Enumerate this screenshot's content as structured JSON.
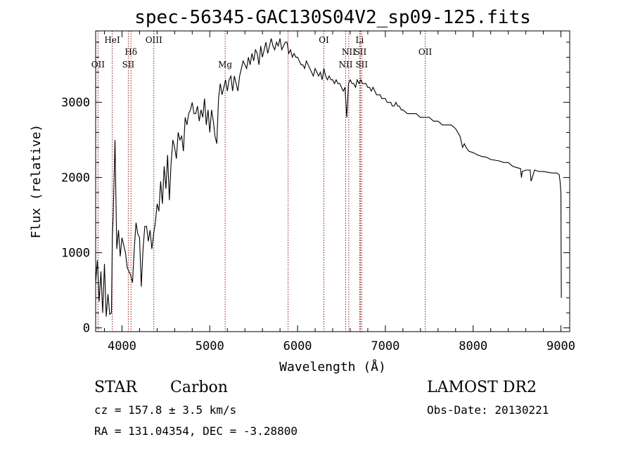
{
  "chart_data": {
    "type": "line",
    "title": "spec-56345-GAC130S04V2_sp09-125.fits",
    "xlabel": "Wavelength (Å)",
    "ylabel": "Flux (relative)",
    "xlim": [
      3700,
      9100
    ],
    "ylim": [
      -50,
      3950
    ],
    "xticks": [
      {
        "value": 4000,
        "label": "4000"
      },
      {
        "value": 5000,
        "label": "5000"
      },
      {
        "value": 6000,
        "label": "6000"
      },
      {
        "value": 7000,
        "label": "7000"
      },
      {
        "value": 8000,
        "label": "8000"
      },
      {
        "value": 9000,
        "label": "9000"
      }
    ],
    "yticks": [
      {
        "value": 0,
        "label": "0"
      },
      {
        "value": 1000,
        "label": "1000"
      },
      {
        "value": 2000,
        "label": "2000"
      },
      {
        "value": 3000,
        "label": "3000"
      }
    ],
    "grid": false,
    "series": [
      {
        "x": [
          3700,
          3720,
          3740,
          3760,
          3780,
          3800,
          3820,
          3840,
          3860,
          3880,
          3890,
          3900,
          3920,
          3940,
          3960,
          3980,
          4000,
          4020,
          4040,
          4060,
          4080,
          4100,
          4120,
          4140,
          4160,
          4180,
          4200,
          4220,
          4240,
          4260,
          4280,
          4300,
          4320,
          4340,
          4360,
          4380,
          4400,
          4420,
          4440,
          4460,
          4480,
          4500,
          4520,
          4540,
          4560,
          4580,
          4600,
          4620,
          4640,
          4660,
          4680,
          4700,
          4720,
          4740,
          4760,
          4780,
          4800,
          4820,
          4840,
          4860,
          4880,
          4900,
          4920,
          4940,
          4960,
          4980,
          5000,
          5020,
          5040,
          5060,
          5080,
          5100,
          5120,
          5140,
          5160,
          5180,
          5200,
          5220,
          5240,
          5260,
          5280,
          5300,
          5320,
          5340,
          5360,
          5380,
          5400,
          5420,
          5440,
          5460,
          5480,
          5500,
          5520,
          5540,
          5560,
          5580,
          5600,
          5620,
          5640,
          5660,
          5680,
          5700,
          5720,
          5740,
          5760,
          5780,
          5800,
          5820,
          5840,
          5860,
          5880,
          5900,
          5920,
          5940,
          5960,
          5980,
          6000,
          6020,
          6040,
          6060,
          6080,
          6100,
          6120,
          6140,
          6160,
          6180,
          6200,
          6220,
          6240,
          6260,
          6280,
          6300,
          6320,
          6340,
          6360,
          6380,
          6400,
          6420,
          6440,
          6460,
          6480,
          6500,
          6520,
          6540,
          6560,
          6570,
          6580,
          6600,
          6620,
          6640,
          6660,
          6680,
          6700,
          6720,
          6740,
          6760,
          6780,
          6800,
          6820,
          6840,
          6860,
          6880,
          6900,
          6920,
          6940,
          6960,
          6980,
          7000,
          7020,
          7040,
          7060,
          7080,
          7100,
          7120,
          7140,
          7160,
          7180,
          7200,
          7250,
          7300,
          7350,
          7400,
          7450,
          7500,
          7550,
          7600,
          7650,
          7700,
          7750,
          7800,
          7850,
          7880,
          7900,
          7920,
          7950,
          8000,
          8050,
          8100,
          8150,
          8200,
          8250,
          8300,
          8350,
          8400,
          8450,
          8500,
          8540,
          8550,
          8560,
          8600,
          8650,
          8660,
          8700,
          8750,
          8800,
          8850,
          8900,
          8950,
          8980,
          8990,
          9000,
          9005
        ],
        "y": [
          600,
          900,
          350,
          750,
          200,
          850,
          150,
          450,
          180,
          200,
          1200,
          1500,
          2500,
          1050,
          1300,
          950,
          1200,
          1100,
          1000,
          800,
          750,
          700,
          600,
          1050,
          1400,
          1250,
          1200,
          550,
          1050,
          1350,
          1350,
          1150,
          1300,
          1050,
          1250,
          1400,
          1650,
          1550,
          1950,
          1650,
          2150,
          1850,
          2300,
          1700,
          2200,
          2500,
          2400,
          2250,
          2600,
          2500,
          2550,
          2350,
          2800,
          2700,
          2850,
          2900,
          3000,
          2850,
          2850,
          2950,
          2750,
          2900,
          2800,
          3050,
          2700,
          2900,
          2600,
          2900,
          2750,
          2550,
          2450,
          3050,
          3250,
          3100,
          3200,
          3300,
          3150,
          3300,
          3350,
          3150,
          3350,
          3250,
          3150,
          3350,
          3450,
          3550,
          3500,
          3450,
          3600,
          3500,
          3650,
          3550,
          3700,
          3650,
          3500,
          3750,
          3600,
          3700,
          3800,
          3650,
          3750,
          3850,
          3750,
          3700,
          3800,
          3750,
          3850,
          3700,
          3750,
          3800,
          3800,
          3650,
          3700,
          3600,
          3650,
          3600,
          3600,
          3550,
          3500,
          3500,
          3450,
          3550,
          3500,
          3450,
          3400,
          3350,
          3450,
          3400,
          3350,
          3400,
          3300,
          3450,
          3350,
          3300,
          3350,
          3300,
          3300,
          3250,
          3300,
          3250,
          3250,
          3200,
          3150,
          3200,
          2800,
          3000,
          3250,
          3300,
          3250,
          3250,
          3200,
          3300,
          3250,
          3300,
          3250,
          3250,
          3250,
          3200,
          3200,
          3150,
          3200,
          3150,
          3100,
          3100,
          3100,
          3050,
          3050,
          3050,
          3000,
          3000,
          3000,
          2950,
          2950,
          3000,
          2950,
          2950,
          2900,
          2900,
          2850,
          2850,
          2850,
          2800,
          2800,
          2800,
          2750,
          2750,
          2700,
          2700,
          2700,
          2650,
          2550,
          2400,
          2450,
          2400,
          2350,
          2330,
          2300,
          2280,
          2270,
          2240,
          2230,
          2220,
          2200,
          2200,
          2150,
          2130,
          2120,
          2000,
          2080,
          2100,
          2100,
          1950,
          2100,
          2080,
          2080,
          2070,
          2060,
          2060,
          2040,
          1950,
          1800,
          400
        ]
      }
    ],
    "annotations": {
      "lines": [
        {
          "wavelength": 3727,
          "label": "OII",
          "row": 3
        },
        {
          "wavelength": 3889,
          "label": "HeI",
          "row": 1
        },
        {
          "wavelength": 4072,
          "label": "SII",
          "row": 3
        },
        {
          "wavelength": 4102,
          "label": "Hδ",
          "row": 2
        },
        {
          "wavelength": 4363,
          "label": "OIII",
          "row": 1
        },
        {
          "wavelength": 5175,
          "label": "Mg",
          "row": 3
        },
        {
          "wavelength": 5892,
          "label": "",
          "row": 0
        },
        {
          "wavelength": 6300,
          "label": "OI",
          "row": 1
        },
        {
          "wavelength": 6548,
          "label": "NII",
          "row": 3
        },
        {
          "wavelength": 6583,
          "label": "NII",
          "row": 2
        },
        {
          "wavelength": 6708,
          "label": "Li",
          "row": 1
        },
        {
          "wavelength": 6716,
          "label": "SII",
          "row": 2
        },
        {
          "wavelength": 6731,
          "label": "SII",
          "row": 3
        },
        {
          "wavelength": 7454,
          "label": "OII",
          "row": 2
        }
      ]
    },
    "info": {
      "object_class": "STAR",
      "subclass": "Carbon",
      "survey": "LAMOST DR2",
      "cz": "cz = 157.8 ± 3.5 km/s",
      "obs_date": "Obs-Date: 20130221",
      "coords": "RA = 131.04354, DEC =  -3.28800"
    }
  }
}
